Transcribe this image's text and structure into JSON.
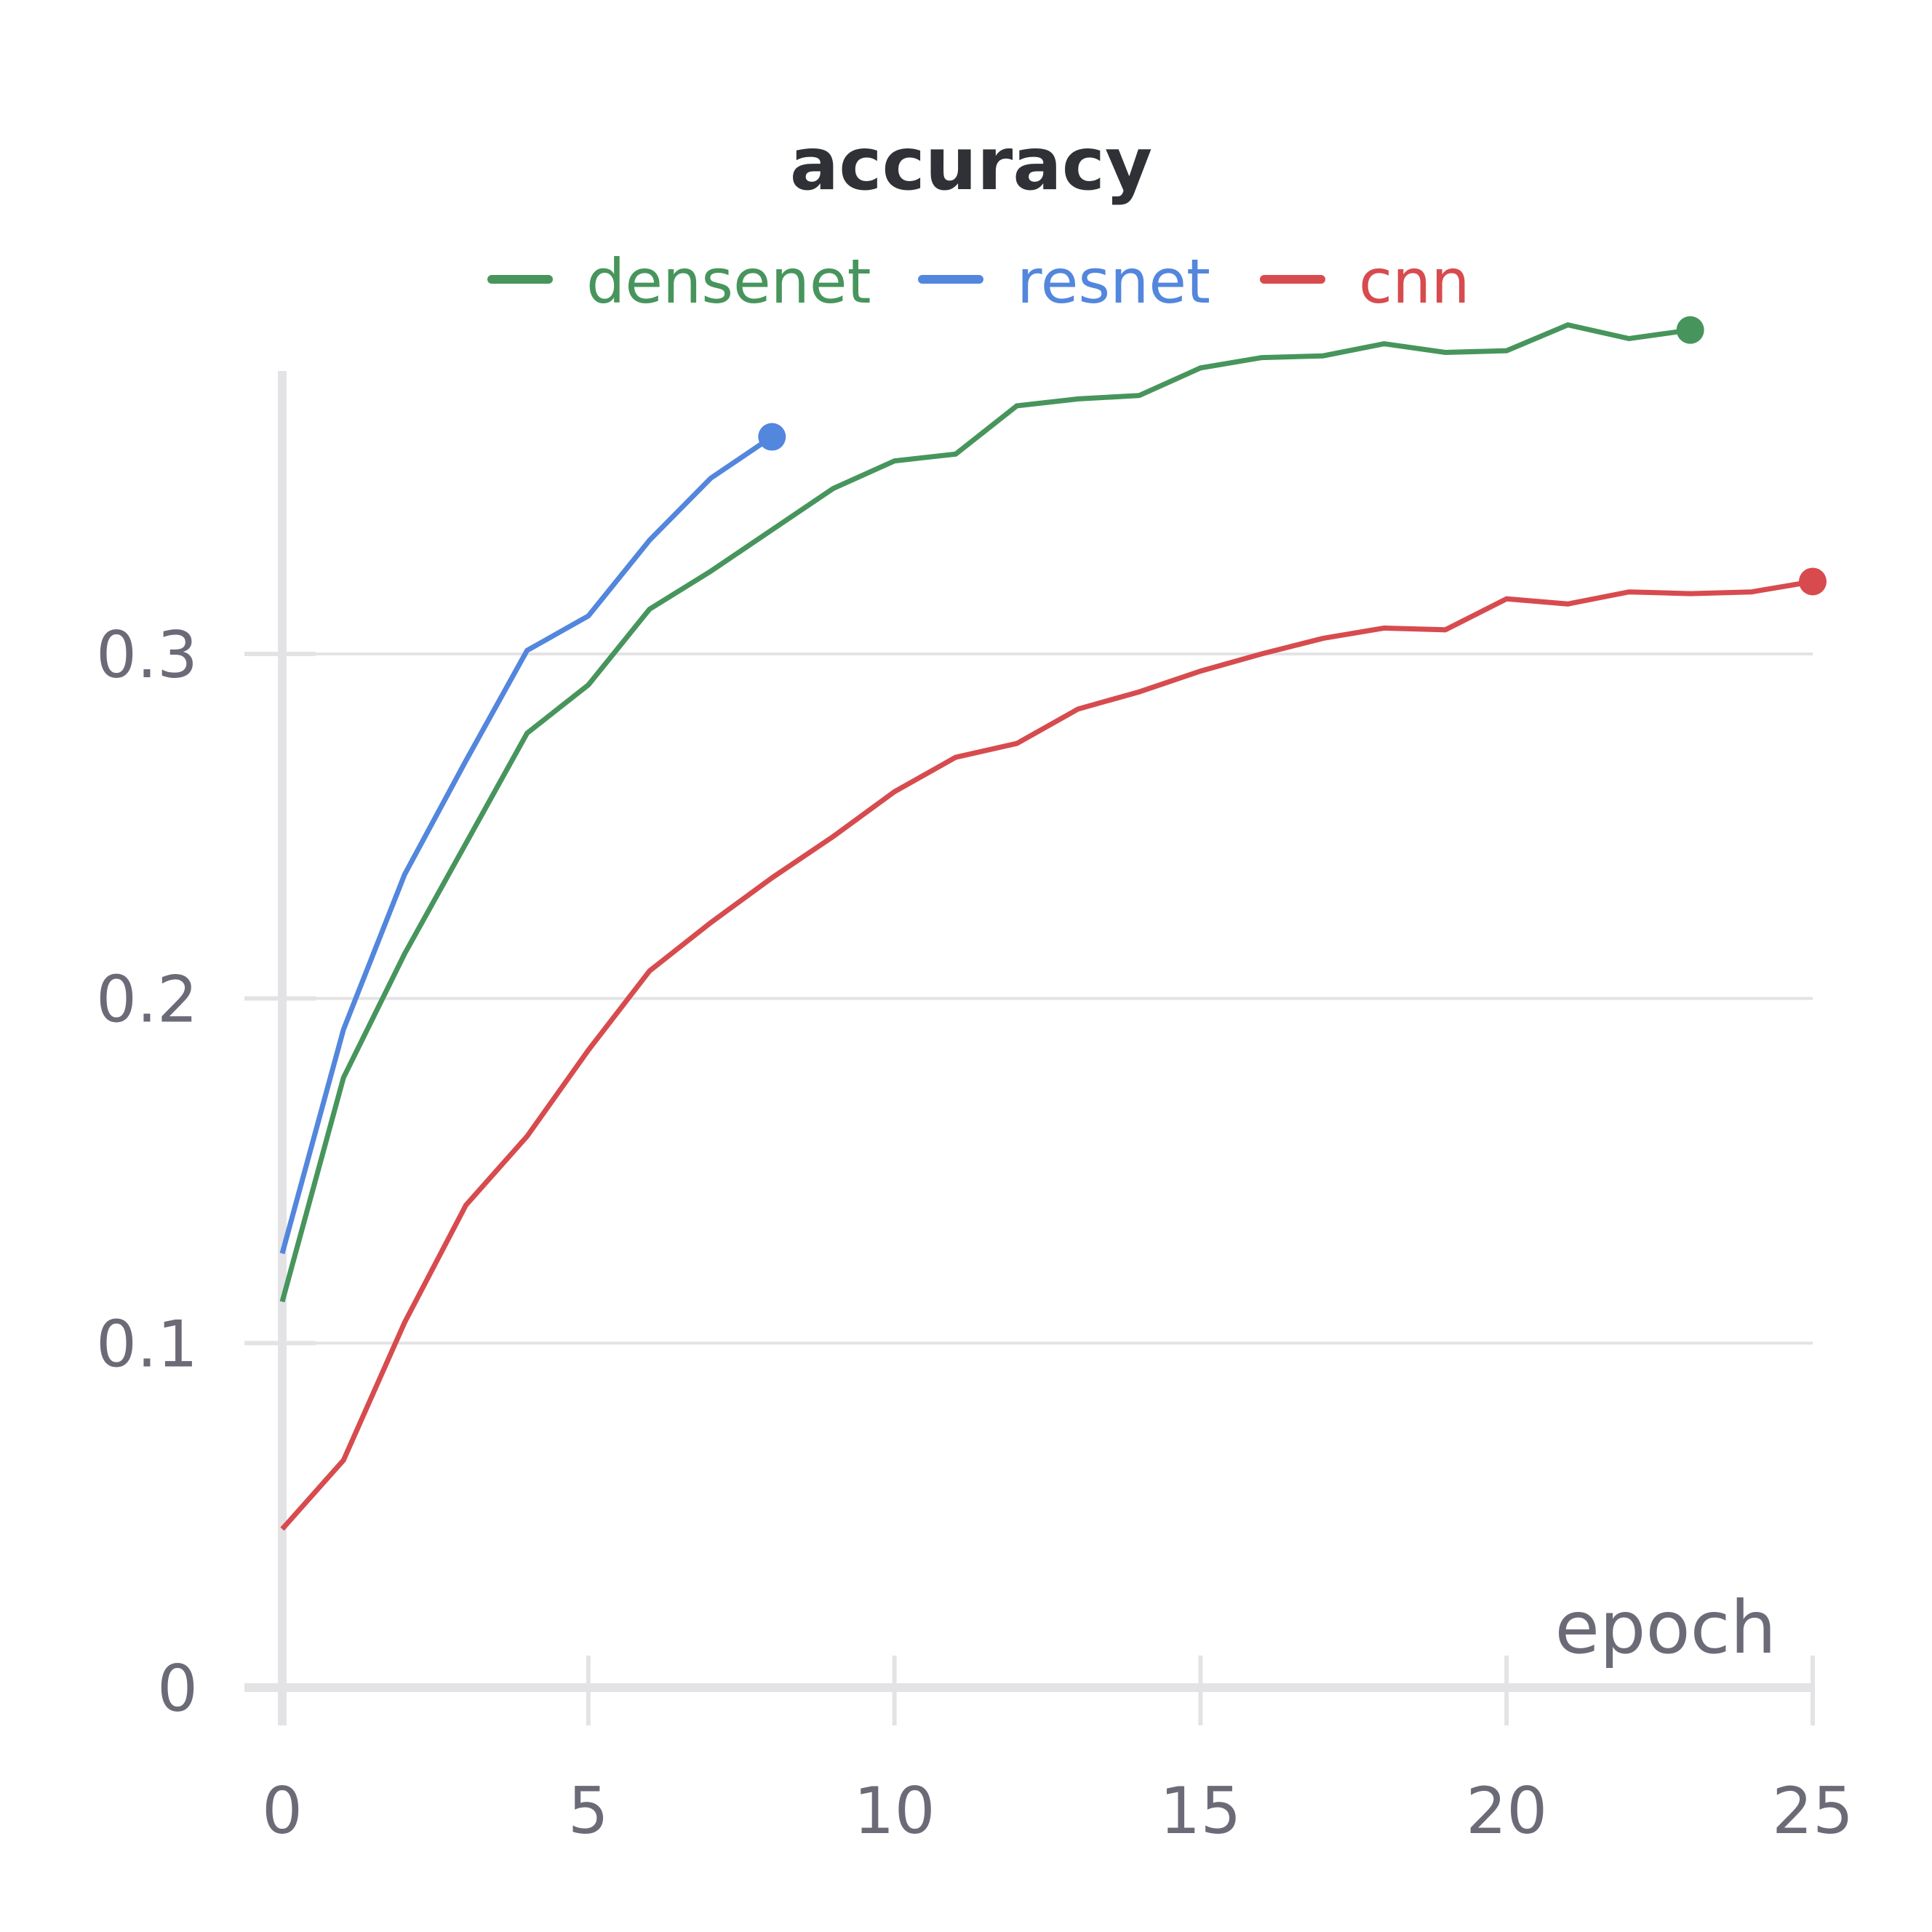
{
  "chart_data": {
    "type": "line",
    "title": "accuracy",
    "xlabel": "epoch",
    "ylabel": "",
    "xlim": [
      0,
      25
    ],
    "ylim": [
      0,
      0.38
    ],
    "xticks": [
      0,
      5,
      10,
      15,
      20,
      25
    ],
    "xtick_labels": [
      "0",
      "5",
      "10",
      "15",
      "20",
      "25"
    ],
    "yticks": [
      0,
      0.1,
      0.2,
      0.3
    ],
    "ytick_labels": [
      "0",
      "0.1",
      "0.2",
      "0.3"
    ],
    "grid": true,
    "legend_position": "top-center",
    "series": [
      {
        "name": "densenet",
        "color": "#47955c",
        "x": [
          0,
          1,
          2,
          3,
          4,
          5,
          6,
          7,
          8,
          9,
          10,
          11,
          12,
          13,
          14,
          15,
          16,
          17,
          18,
          19,
          20,
          21,
          22,
          23
        ],
        "y": [
          0.112,
          0.177,
          0.213,
          0.245,
          0.277,
          0.291,
          0.313,
          0.324,
          0.336,
          0.348,
          0.356,
          0.358,
          0.372,
          0.374,
          0.375,
          0.383,
          0.386,
          0.3865,
          0.39,
          0.3875,
          0.388,
          0.3955,
          0.3915,
          0.394
        ]
      },
      {
        "name": "resnet",
        "color": "#5386dd",
        "x": [
          0,
          1,
          2,
          3,
          4,
          5,
          6,
          7,
          8
        ],
        "y": [
          0.126,
          0.191,
          0.236,
          0.269,
          0.301,
          0.311,
          0.333,
          0.351,
          0.363
        ]
      },
      {
        "name": "cnn",
        "color": "#d74b4e",
        "x": [
          0,
          1,
          2,
          3,
          4,
          5,
          6,
          7,
          8,
          9,
          10,
          11,
          12,
          13,
          14,
          15,
          16,
          17,
          18,
          19,
          20,
          21,
          22,
          23,
          24,
          25
        ],
        "y": [
          0.046,
          0.066,
          0.106,
          0.14,
          0.16,
          0.185,
          0.208,
          0.222,
          0.235,
          0.247,
          0.26,
          0.27,
          0.274,
          0.284,
          0.289,
          0.295,
          0.3,
          0.3045,
          0.3075,
          0.307,
          0.316,
          0.3145,
          0.318,
          0.3175,
          0.318,
          0.321
        ]
      }
    ]
  }
}
